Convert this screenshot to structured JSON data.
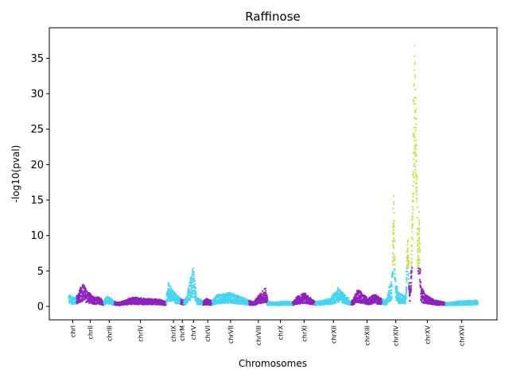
{
  "chart_data": {
    "type": "scatter",
    "title": "Raffinose",
    "xlabel": "Chromosomes",
    "ylabel": "-log10(pval)",
    "ylim": [
      -1.9,
      39.3
    ],
    "yticks": [
      0,
      5,
      10,
      15,
      20,
      25,
      30,
      35
    ],
    "grid": false,
    "legend": "none",
    "colors": {
      "purple": "#9021be",
      "cyan": "#44d6f2",
      "significant": "#bde63f"
    },
    "chromosomes": [
      {
        "name": "chrI",
        "start": 0,
        "end": 230,
        "color": "cyan"
      },
      {
        "name": "chrII",
        "start": 230,
        "end": 1043,
        "color": "purple"
      },
      {
        "name": "chrIII",
        "start": 1043,
        "end": 1360,
        "color": "cyan"
      },
      {
        "name": "chrIV",
        "start": 1360,
        "end": 2892,
        "color": "purple"
      },
      {
        "name": "chrIX",
        "start": 2892,
        "end": 3332,
        "color": "cyan"
      },
      {
        "name": "chrM",
        "start": 3332,
        "end": 3418,
        "color": "purple"
      },
      {
        "name": "chrV",
        "start": 3418,
        "end": 3995,
        "color": "cyan"
      },
      {
        "name": "chrVI",
        "start": 3995,
        "end": 4265,
        "color": "purple"
      },
      {
        "name": "chrVII",
        "start": 4265,
        "end": 5356,
        "color": "cyan"
      },
      {
        "name": "chrVIII",
        "start": 5356,
        "end": 5918,
        "color": "purple"
      },
      {
        "name": "chrX",
        "start": 5918,
        "end": 6663,
        "color": "cyan"
      },
      {
        "name": "chrXI",
        "start": 6663,
        "end": 7330,
        "color": "purple"
      },
      {
        "name": "chrXII",
        "start": 7330,
        "end": 8408,
        "color": "cyan"
      },
      {
        "name": "chrXIII",
        "start": 8408,
        "end": 9332,
        "color": "purple"
      },
      {
        "name": "chrXIV",
        "start": 9332,
        "end": 10116,
        "color": "cyan"
      },
      {
        "name": "chrXV",
        "start": 10116,
        "end": 11207,
        "color": "purple"
      },
      {
        "name": "chrXVI",
        "start": 11207,
        "end": 12155,
        "color": "cyan"
      }
    ],
    "tick_positions": [
      115,
      636,
      1201,
      2126,
      3112,
      3375,
      3706,
      4130,
      4810,
      5637,
      6290,
      6996,
      7869,
      8870,
      9724,
      10661,
      11681
    ],
    "xlim": [
      -580,
      12735
    ],
    "profile": [
      [
        0,
        1.6
      ],
      [
        90,
        1.3
      ],
      [
        180,
        1.1
      ],
      [
        250,
        1.5
      ],
      [
        420,
        3.0
      ],
      [
        520,
        2.2
      ],
      [
        700,
        1.3
      ],
      [
        900,
        1.2
      ],
      [
        1040,
        0.6
      ],
      [
        1100,
        1.3
      ],
      [
        1250,
        1.1
      ],
      [
        1360,
        0.6
      ],
      [
        1500,
        0.5
      ],
      [
        1900,
        1.2
      ],
      [
        2300,
        1.0
      ],
      [
        2700,
        0.9
      ],
      [
        2890,
        0.6
      ],
      [
        2950,
        3.2
      ],
      [
        3100,
        2.0
      ],
      [
        3330,
        1.0
      ],
      [
        3360,
        1.0
      ],
      [
        3418,
        0.8
      ],
      [
        3500,
        1.2
      ],
      [
        3700,
        5.2
      ],
      [
        3800,
        1.2
      ],
      [
        3995,
        0.7
      ],
      [
        4100,
        1.0
      ],
      [
        4265,
        0.7
      ],
      [
        4400,
        1.5
      ],
      [
        4800,
        1.8
      ],
      [
        5356,
        0.8
      ],
      [
        5500,
        0.6
      ],
      [
        5850,
        2.4
      ],
      [
        5918,
        0.7
      ],
      [
        6100,
        0.5
      ],
      [
        6400,
        0.7
      ],
      [
        6663,
        0.6
      ],
      [
        6800,
        1.3
      ],
      [
        7000,
        1.8
      ],
      [
        7330,
        0.6
      ],
      [
        7500,
        0.7
      ],
      [
        7800,
        1.1
      ],
      [
        8000,
        2.4
      ],
      [
        8408,
        0.6
      ],
      [
        8600,
        2.2
      ],
      [
        8900,
        1.0
      ],
      [
        9100,
        1.6
      ],
      [
        9332,
        0.9
      ],
      [
        9450,
        0.9
      ],
      [
        9650,
        5.0
      ],
      [
        9800,
        1.8
      ],
      [
        10000,
        1.3
      ],
      [
        10116,
        0.9
      ],
      [
        10150,
        2.0
      ],
      [
        10400,
        3.3
      ],
      [
        10600,
        1.5
      ],
      [
        10900,
        0.8
      ],
      [
        11207,
        0.5
      ],
      [
        11300,
        0.5
      ],
      [
        11600,
        0.7
      ],
      [
        12155,
        0.8
      ]
    ],
    "peaks": [
      {
        "center": 9660,
        "width": 22,
        "height": 15.0
      },
      {
        "center": 10080,
        "width": 28,
        "height": 10.0
      },
      {
        "center": 10290,
        "width": 55,
        "height": 35.5
      },
      {
        "center": 10420,
        "width": 22,
        "height": 13.0
      }
    ],
    "significance_threshold": 5.5,
    "y_range_scaling_note": ""
  }
}
